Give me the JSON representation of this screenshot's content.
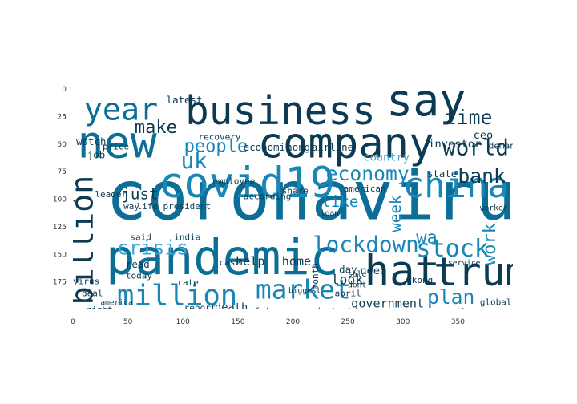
{
  "chart_data": {
    "type": "wordcloud",
    "title": "",
    "xlabel": "",
    "ylabel": "",
    "xlim": [
      0,
      400
    ],
    "ylim": [
      200,
      0
    ],
    "xticks": [
      0,
      50,
      100,
      150,
      200,
      250,
      300,
      350
    ],
    "yticks": [
      0,
      25,
      50,
      75,
      100,
      125,
      150,
      175
    ],
    "grid": false,
    "palette": [
      "#0b3a52",
      "#0a6e96",
      "#1a86b8",
      "#3fa7d6",
      "#7fc3e6"
    ],
    "words": [
      {
        "text": "coronavirus",
        "x": 30,
        "y": 118,
        "size": 62,
        "color": "#0a6e96"
      },
      {
        "text": "pandemic",
        "x": 30,
        "y": 168,
        "size": 44,
        "color": "#0a6e96"
      },
      {
        "text": "business",
        "x": 102,
        "y": 32,
        "size": 36,
        "color": "#0b3a52"
      },
      {
        "text": "say",
        "x": 285,
        "y": 24,
        "size": 40,
        "color": "#0b3a52"
      },
      {
        "text": "company",
        "x": 168,
        "y": 62,
        "size": 38,
        "color": "#0b3a52"
      },
      {
        "text": "new",
        "x": 4,
        "y": 62,
        "size": 40,
        "color": "#0a6e96"
      },
      {
        "text": "covid19",
        "x": 78,
        "y": 98,
        "size": 38,
        "color": "#1a86b8"
      },
      {
        "text": "trump",
        "x": 328,
        "y": 178,
        "size": 36,
        "color": "#0b3a52"
      },
      {
        "text": "china",
        "x": 300,
        "y": 98,
        "size": 32,
        "color": "#1a86b8"
      },
      {
        "text": "hat",
        "x": 265,
        "y": 178,
        "size": 38,
        "color": "#0b3a52"
      },
      {
        "text": "year",
        "x": 10,
        "y": 28,
        "size": 28,
        "color": "#0a6e96"
      },
      {
        "text": "billion",
        "x": 18,
        "y": 196,
        "size": 28,
        "color": "#0b3a52",
        "rotate": -90
      },
      {
        "text": "million",
        "x": 40,
        "y": 196,
        "size": 26,
        "color": "#1a86b8"
      },
      {
        "text": "market",
        "x": 166,
        "y": 190,
        "size": 24,
        "color": "#1a86b8"
      },
      {
        "text": "stock",
        "x": 312,
        "y": 152,
        "size": 22,
        "color": "#1a86b8"
      },
      {
        "text": "world",
        "x": 336,
        "y": 60,
        "size": 20,
        "color": "#0b3a52"
      },
      {
        "text": "time",
        "x": 338,
        "y": 32,
        "size": 18,
        "color": "#0b3a52"
      },
      {
        "text": "bank",
        "x": 350,
        "y": 85,
        "size": 18,
        "color": "#0b3a52"
      },
      {
        "text": "lockdown",
        "x": 218,
        "y": 148,
        "size": 20,
        "color": "#1a86b8"
      },
      {
        "text": "economy",
        "x": 230,
        "y": 83,
        "size": 18,
        "color": "#1a86b8"
      },
      {
        "text": "people",
        "x": 101,
        "y": 57,
        "size": 16,
        "color": "#1a86b8"
      },
      {
        "text": "make",
        "x": 56,
        "y": 40,
        "size": 16,
        "color": "#0b3a52"
      },
      {
        "text": "crisis",
        "x": 40,
        "y": 150,
        "size": 18,
        "color": "#3fa7d6"
      },
      {
        "text": "uk",
        "x": 98,
        "y": 72,
        "size": 20,
        "color": "#1a86b8"
      },
      {
        "text": "plan",
        "x": 322,
        "y": 195,
        "size": 18,
        "color": "#1a86b8"
      },
      {
        "text": "work",
        "x": 384,
        "y": 160,
        "size": 16,
        "color": "#1a86b8",
        "rotate": -90
      },
      {
        "text": "week",
        "x": 298,
        "y": 130,
        "size": 14,
        "color": "#1a86b8",
        "rotate": -90
      },
      {
        "text": "like",
        "x": 226,
        "y": 107,
        "size": 14,
        "color": "#1a86b8"
      },
      {
        "text": "just",
        "x": 44,
        "y": 100,
        "size": 14,
        "color": "#0b3a52"
      },
      {
        "text": "wa",
        "x": 312,
        "y": 140,
        "size": 16,
        "color": "#1a86b8"
      },
      {
        "text": "look",
        "x": 235,
        "y": 177,
        "size": 12,
        "color": "#0b3a52"
      },
      {
        "text": "government",
        "x": 253,
        "y": 198,
        "size": 11,
        "color": "#0b3a52"
      },
      {
        "text": "home",
        "x": 190,
        "y": 160,
        "size": 11,
        "color": "#0b3a52"
      },
      {
        "text": "help",
        "x": 148,
        "y": 160,
        "size": 11,
        "color": "#0b3a52"
      },
      {
        "text": "need",
        "x": 261,
        "y": 168,
        "size": 10,
        "color": "#0b3a52"
      },
      {
        "text": "death",
        "x": 129,
        "y": 201,
        "size": 10,
        "color": "#0b3a52"
      },
      {
        "text": "day",
        "x": 242,
        "y": 167,
        "size": 9,
        "color": "#0b3a52"
      },
      {
        "text": "country",
        "x": 264,
        "y": 65,
        "size": 10,
        "color": "#3fa7d6"
      },
      {
        "text": "state",
        "x": 322,
        "y": 80,
        "size": 9,
        "color": "#0b3a52"
      },
      {
        "text": "investor",
        "x": 323,
        "y": 53,
        "size": 10,
        "color": "#0b3a52"
      },
      {
        "text": "latest",
        "x": 85,
        "y": 13,
        "size": 9,
        "color": "#0b3a52"
      },
      {
        "text": "watch",
        "x": 3,
        "y": 51,
        "size": 9,
        "color": "#0b3a52"
      },
      {
        "text": "job",
        "x": 13,
        "y": 63,
        "size": 9,
        "color": "#0b3a52"
      },
      {
        "text": "price",
        "x": 27,
        "y": 55,
        "size": 8,
        "color": "#0b3a52"
      },
      {
        "text": "ceo",
        "x": 364,
        "y": 45,
        "size": 10,
        "color": "#0b3a52"
      },
      {
        "text": "demand",
        "x": 378,
        "y": 54,
        "size": 8,
        "color": "#0b3a52"
      },
      {
        "text": "recovery",
        "x": 114,
        "y": 46,
        "size": 8,
        "color": "#0b3a52"
      },
      {
        "text": "economic",
        "x": 155,
        "y": 56,
        "size": 9,
        "color": "#0b3a52"
      },
      {
        "text": "hong",
        "x": 194,
        "y": 56,
        "size": 9,
        "color": "#0b3a52"
      },
      {
        "text": "airline",
        "x": 217,
        "y": 56,
        "size": 9,
        "color": "#0b3a52"
      },
      {
        "text": "employee",
        "x": 127,
        "y": 86,
        "size": 8,
        "color": "#0b3a52"
      },
      {
        "text": "american",
        "x": 246,
        "y": 93,
        "size": 8,
        "color": "#0b3a52"
      },
      {
        "text": "leader",
        "x": 20,
        "y": 98,
        "size": 8,
        "color": "#0b3a52"
      },
      {
        "text": "way",
        "x": 46,
        "y": 109,
        "size": 8,
        "color": "#0b3a52"
      },
      {
        "text": "life",
        "x": 58,
        "y": 109,
        "size": 8,
        "color": "#0b3a52"
      },
      {
        "text": "president",
        "x": 82,
        "y": 109,
        "size": 8,
        "color": "#0b3a52"
      },
      {
        "text": "according",
        "x": 155,
        "y": 100,
        "size": 8,
        "color": "#0b3a52"
      },
      {
        "text": "share",
        "x": 190,
        "y": 95,
        "size": 8,
        "color": "#0b3a52"
      },
      {
        "text": "loan",
        "x": 225,
        "y": 115,
        "size": 7,
        "color": "#0b3a52"
      },
      {
        "text": "said",
        "x": 52,
        "y": 137,
        "size": 8,
        "color": "#0b3a52"
      },
      {
        "text": "industry",
        "x": 0,
        "y": 137,
        "size": 8,
        "color": "#0b3a52",
        "rotate": -90
      },
      {
        "text": "india",
        "x": 92,
        "y": 137,
        "size": 8,
        "color": "#0b3a52"
      },
      {
        "text": "read",
        "x": 48,
        "y": 162,
        "size": 9,
        "color": "#0b3a52"
      },
      {
        "text": "today",
        "x": 48,
        "y": 172,
        "size": 8,
        "color": "#0b3a52"
      },
      {
        "text": "virus",
        "x": 0,
        "y": 177,
        "size": 8,
        "color": "#0b3a52"
      },
      {
        "text": "deal",
        "x": 8,
        "y": 188,
        "size": 8,
        "color": "#0b3a52"
      },
      {
        "text": "america",
        "x": 25,
        "y": 196,
        "size": 7,
        "color": "#0b3a52"
      },
      {
        "text": "rate",
        "x": 95,
        "y": 178,
        "size": 8,
        "color": "#0b3a52"
      },
      {
        "text": "case",
        "x": 133,
        "y": 160,
        "size": 8,
        "color": "#0b3a52"
      },
      {
        "text": "report",
        "x": 101,
        "y": 201,
        "size": 8,
        "color": "#0b3a52"
      },
      {
        "text": "future",
        "x": 165,
        "y": 204,
        "size": 8,
        "color": "#0b3a52"
      },
      {
        "text": "record",
        "x": 196,
        "y": 204,
        "size": 8,
        "color": "#0b3a52"
      },
      {
        "text": "start",
        "x": 230,
        "y": 204,
        "size": 8,
        "color": "#0b3a52"
      },
      {
        "text": "month",
        "x": 223,
        "y": 182,
        "size": 8,
        "color": "#0b3a52",
        "rotate": -90
      },
      {
        "text": "biggest",
        "x": 196,
        "y": 185,
        "size": 7,
        "color": "#0b3a52"
      },
      {
        "text": "dont",
        "x": 250,
        "y": 180,
        "size": 7,
        "color": "#0b3a52"
      },
      {
        "text": "april",
        "x": 238,
        "y": 188,
        "size": 8,
        "color": "#0b3a52"
      },
      {
        "text": "sale",
        "x": 250,
        "y": 170,
        "size": 7,
        "color": "#0b3a52"
      },
      {
        "text": "kong",
        "x": 308,
        "y": 176,
        "size": 8,
        "color": "#0b3a52"
      },
      {
        "text": "right",
        "x": 12,
        "y": 203,
        "size": 8,
        "color": "#0b3a52"
      },
      {
        "text": "global",
        "x": 370,
        "y": 196,
        "size": 8,
        "color": "#0b3a52"
      },
      {
        "text": "city",
        "x": 343,
        "y": 204,
        "size": 8,
        "color": "#0b3a52"
      },
      {
        "text": "health",
        "x": 376,
        "y": 205,
        "size": 8,
        "color": "#0b3a52"
      },
      {
        "text": "service",
        "x": 341,
        "y": 160,
        "size": 7,
        "color": "#0b3a52"
      },
      {
        "text": "worker",
        "x": 370,
        "y": 110,
        "size": 7,
        "color": "#0b3a52"
      }
    ]
  }
}
